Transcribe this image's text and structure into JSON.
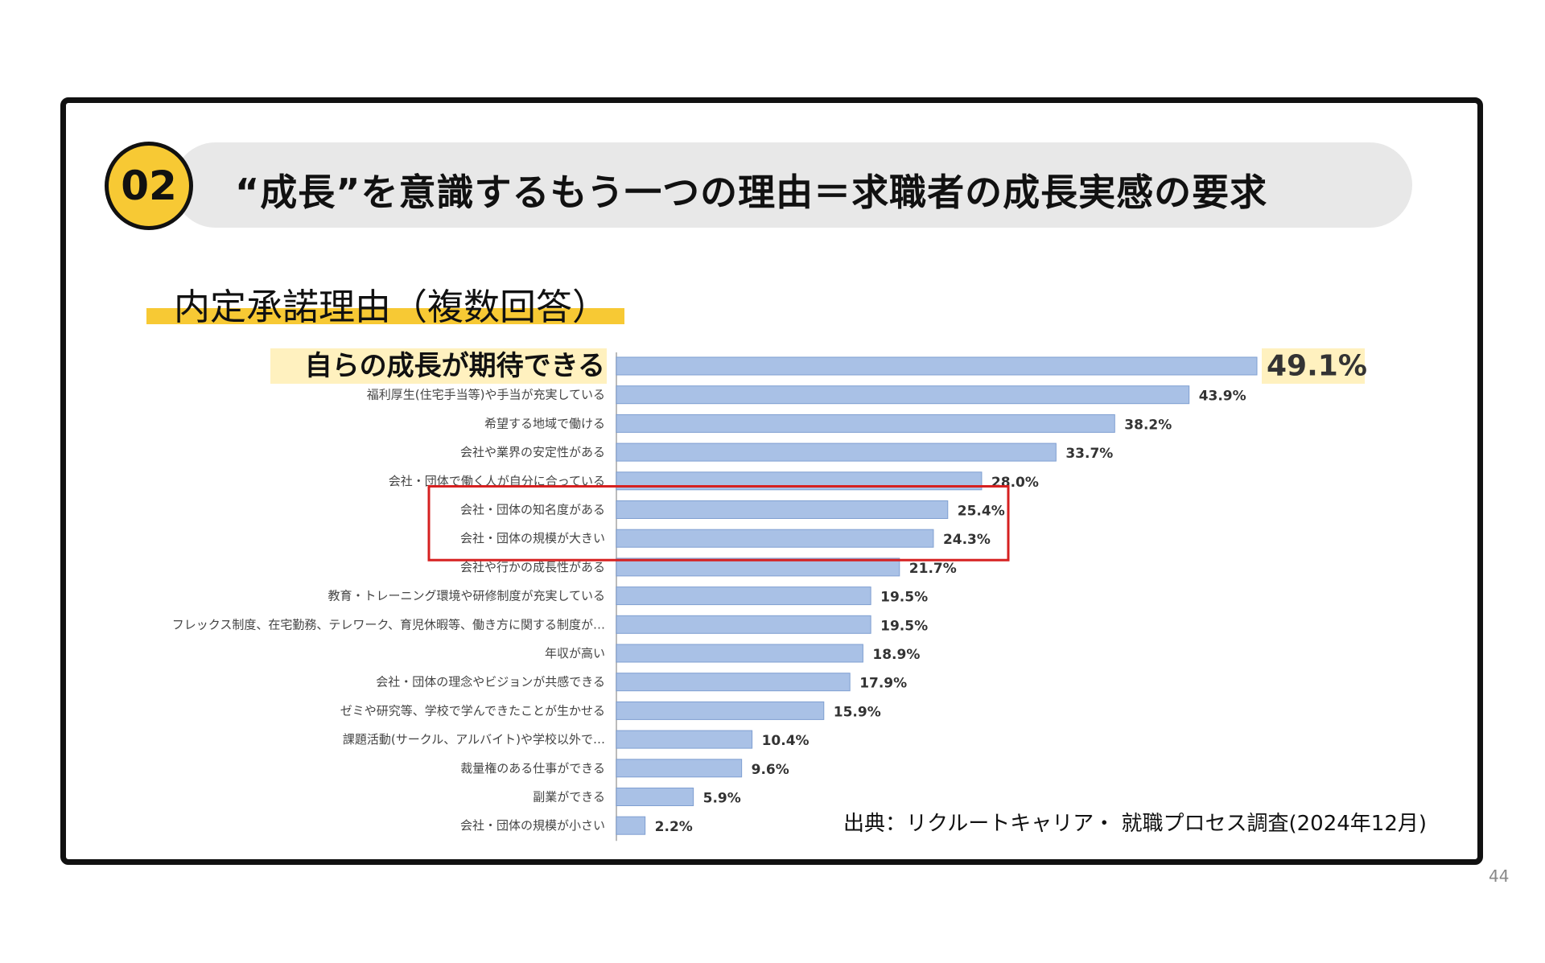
{
  "header": {
    "badge": "02",
    "title": "“成長”を意識するもう一つの理由＝求職者の成長実感の要求"
  },
  "subtitle": "内定承諾理由（複数回答）",
  "source": "出典：リクルートキャリア・ 就職プロセス調査(2024年12月)",
  "page_number": "44",
  "colors": {
    "bar": "#a9c1e6",
    "bar_edge": "#7f9fd1",
    "highlight": "#fff1bf",
    "box": "#d62020",
    "accent": "#f7c934"
  },
  "chart_data": {
    "type": "bar",
    "orientation": "horizontal",
    "title": "内定承諾理由（複数回答）",
    "categories": [
      "自らの成長が期待できる",
      "福利厚生(住宅手当等)や手当が充実している",
      "希望する地域で働ける",
      "会社や業界の安定性がある",
      "会社・団体で働く人が自分に合っている",
      "会社・団体の知名度がある",
      "会社・団体の規模が大きい",
      "会社や行かの成長性がある",
      "教育・トレーニング環境や研修制度が充実している",
      "フレックス制度、在宅勤務、テレワーク、育児休暇等、働き方に関する制度が…",
      "年収が高い",
      "会社・団体の理念やビジョンが共感できる",
      "ゼミや研究等、学校で学んできたことが生かせる",
      "課題活動(サークル、アルバイト)や学校以外で…",
      "裁量権のある仕事ができる",
      "副業ができる",
      "会社・団体の規模が小さい"
    ],
    "values": [
      49.1,
      43.9,
      38.2,
      33.7,
      28.0,
      25.4,
      24.3,
      21.7,
      19.5,
      19.5,
      18.9,
      17.9,
      15.9,
      10.4,
      9.6,
      5.9,
      2.2
    ],
    "value_labels": [
      "49.1%",
      "43.9%",
      "38.2%",
      "33.7%",
      "28.0%",
      "25.4%",
      "24.3%",
      "21.7%",
      "19.5%",
      "19.5%",
      "18.9%",
      "17.9%",
      "15.9%",
      "10.4%",
      "9.6%",
      "5.9%",
      "2.2%"
    ],
    "xlim": [
      0,
      49.1
    ],
    "highlighted_index": 0,
    "boxed_indices": [
      5,
      6
    ]
  }
}
